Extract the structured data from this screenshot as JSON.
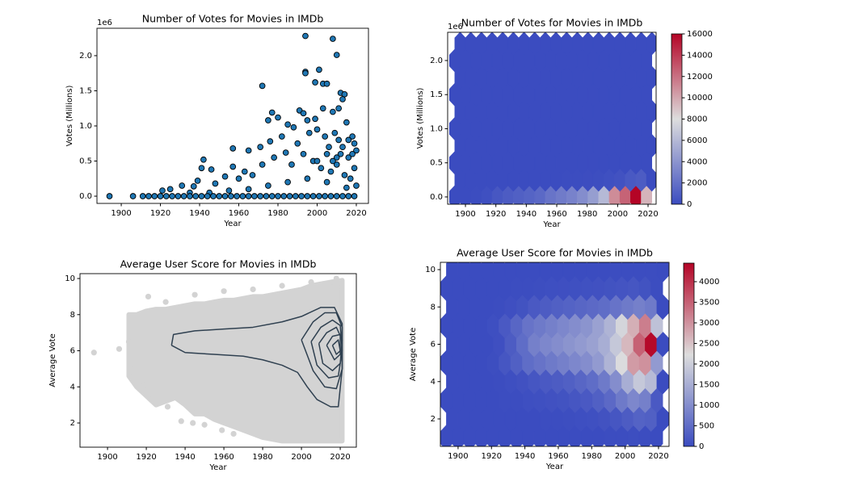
{
  "chart_data": [
    {
      "type": "scatter",
      "title": "Number of Votes for Movies in IMDb",
      "xlabel": "Year",
      "ylabel": "Votes (Millions)",
      "offset_text": "1e6",
      "color": "#1f77b4",
      "edgecolor": "#000000",
      "x": [
        1994,
        2008,
        2010,
        1972,
        1994,
        1994,
        2001,
        1999,
        2003,
        2005,
        2012,
        2014,
        1977,
        1980,
        1975,
        1985,
        1991,
        1993,
        1995,
        1999,
        2003,
        2008,
        2011,
        2013,
        2015,
        2018,
        2019,
        1988,
        1982,
        1976,
        1971,
        1965,
        1957,
        1942,
        1941,
        1946,
        1957,
        1963,
        1967,
        1953,
        1960,
        1939,
        1937,
        1931,
        1925,
        1921,
        1948,
        1972,
        1978,
        1984,
        1990,
        1996,
        2000,
        2004,
        2006,
        2009,
        2012,
        2016,
        2020,
        1987,
        1993,
        1998,
        2002,
        2007,
        2010,
        2014,
        2017,
        2019,
        2020,
        2015,
        2005,
        1995,
        1985,
        1975,
        1965,
        1955,
        1945,
        1935,
        2000,
        2005,
        2010,
        2013,
        2016,
        2018,
        2011,
        2008,
        1894,
        1906,
        1911,
        1914,
        1917,
        1920,
        1923,
        1926,
        1929,
        1932,
        1935,
        1938,
        1941,
        1944,
        1947,
        1950,
        1953,
        1956,
        1959,
        1962,
        1965,
        1968,
        1971,
        1974,
        1977,
        1980,
        1983,
        1986,
        1989,
        1992,
        1995,
        1998,
        2001,
        2004,
        2007,
        2010,
        2013,
        2016,
        2019
      ],
      "values": [
        2.28,
        2.24,
        2.01,
        1.57,
        1.77,
        1.75,
        1.8,
        1.62,
        1.6,
        1.6,
        1.47,
        1.45,
        1.19,
        1.12,
        1.08,
        1.02,
        1.22,
        1.18,
        1.08,
        1.1,
        1.25,
        1.2,
        1.25,
        1.38,
        1.05,
        0.85,
        0.75,
        0.98,
        0.85,
        0.78,
        0.7,
        0.65,
        0.68,
        0.52,
        0.4,
        0.38,
        0.42,
        0.35,
        0.3,
        0.28,
        0.25,
        0.22,
        0.14,
        0.15,
        0.1,
        0.08,
        0.18,
        0.45,
        0.55,
        0.62,
        0.75,
        0.9,
        0.95,
        0.85,
        0.7,
        0.9,
        0.6,
        0.55,
        0.65,
        0.45,
        0.6,
        0.5,
        0.4,
        0.35,
        0.45,
        0.3,
        0.25,
        0.4,
        0.15,
        0.12,
        0.2,
        0.25,
        0.2,
        0.15,
        0.1,
        0.08,
        0.05,
        0.05,
        0.5,
        0.6,
        0.55,
        0.7,
        0.8,
        0.6,
        0.8,
        0.5,
        0,
        0,
        0,
        0,
        0,
        0,
        0,
        0,
        0,
        0,
        0,
        0,
        0,
        0,
        0,
        0,
        0,
        0,
        0,
        0,
        0,
        0,
        0,
        0,
        0,
        0,
        0,
        0,
        0,
        0,
        0,
        0,
        0,
        0,
        0,
        0,
        0,
        0,
        0
      ],
      "xlim": [
        1887.6,
        2026.2
      ],
      "xticks": [
        1900,
        1920,
        1940,
        1960,
        1980,
        2000,
        2020
      ],
      "ylim": [
        -0.103,
        2.39
      ],
      "yticks": [
        {
          "value": 0,
          "label": "0.0"
        },
        0.5,
        {
          "value": 1,
          "label": "1.0"
        },
        1.5,
        {
          "value": 2,
          "label": "2.0"
        }
      ]
    },
    {
      "type": "hexbin",
      "title": "Number of Votes for Movies in IMDb",
      "xlabel": "Year",
      "ylabel": "Votes (Millions)",
      "offset_text": "1e6",
      "x": [
        1893,
        1900,
        1907,
        1914,
        1921,
        1928,
        1935,
        1942,
        1949,
        1956,
        1963,
        1970,
        1977,
        1984,
        1991,
        1998,
        2005,
        2012,
        2019
      ],
      "y": [
        0,
        0.25,
        0.5,
        0.75,
        1,
        1.25,
        1.5,
        1.75,
        2,
        2.25
      ],
      "values": [
        [
          0,
          10,
          40,
          200,
          600,
          900,
          1100,
          1300,
          1600,
          2200,
          2600,
          3000,
          3600,
          4500,
          6000,
          11000,
          12500,
          16000,
          9500
        ],
        [
          0,
          0,
          0,
          0,
          0,
          0,
          0,
          0,
          10,
          20,
          30,
          50,
          80,
          120,
          200,
          350,
          700,
          900,
          0
        ],
        [
          0,
          0,
          0,
          0,
          0,
          0,
          0,
          0,
          0,
          0,
          0,
          0,
          0,
          0,
          0,
          0,
          0,
          0,
          0
        ],
        [
          0,
          0,
          0,
          0,
          0,
          0,
          0,
          0,
          0,
          0,
          0,
          0,
          0,
          0,
          0,
          0,
          0,
          0,
          0
        ],
        [
          0,
          0,
          0,
          0,
          0,
          0,
          0,
          0,
          0,
          0,
          0,
          0,
          0,
          0,
          0,
          0,
          0,
          0,
          0
        ],
        [
          0,
          0,
          0,
          0,
          0,
          0,
          0,
          0,
          0,
          0,
          0,
          0,
          0,
          0,
          0,
          0,
          0,
          0,
          0
        ],
        [
          0,
          0,
          0,
          0,
          0,
          0,
          0,
          0,
          0,
          0,
          0,
          0,
          0,
          0,
          0,
          0,
          0,
          0,
          0
        ],
        [
          0,
          0,
          0,
          0,
          0,
          0,
          0,
          0,
          0,
          0,
          0,
          0,
          0,
          0,
          0,
          0,
          0,
          0,
          0
        ],
        [
          0,
          0,
          0,
          0,
          0,
          0,
          0,
          0,
          0,
          0,
          0,
          0,
          0,
          0,
          0,
          0,
          0,
          0,
          0
        ],
        [
          0,
          0,
          0,
          0,
          0,
          0,
          0,
          0,
          0,
          0,
          0,
          0,
          0,
          0,
          0,
          0,
          0,
          0,
          0
        ]
      ],
      "colormap": [
        "#3b4cc0",
        "#dddddd",
        "#b40426"
      ],
      "clim": [
        0,
        16000
      ],
      "cticks": [
        0,
        2000,
        4000,
        6000,
        8000,
        10000,
        12000,
        14000,
        16000
      ],
      "xlim": [
        1888.3,
        2025.3
      ],
      "xticks": [
        1900,
        1920,
        1940,
        1960,
        1980,
        2000,
        2020
      ],
      "ylim": [
        -0.107,
        2.414
      ],
      "yticks": [
        {
          "value": 0,
          "label": "0.0"
        },
        0.5,
        {
          "value": 1,
          "label": "1.0"
        },
        1.5,
        {
          "value": 2,
          "label": "2.0"
        }
      ]
    },
    {
      "type": "scatter",
      "title": "Average User Score for Movies in IMDb",
      "xlabel": "Year",
      "ylabel": "Average Vote",
      "color": "#d3d3d3",
      "edgecolor": null,
      "envelope": {
        "x": [
          1911,
          1915,
          1920,
          1925,
          1930,
          1935,
          1940,
          1945,
          1950,
          1955,
          1960,
          1965,
          1970,
          1975,
          1980,
          1985,
          1990,
          1995,
          2000,
          2005,
          2010,
          2015,
          2021
        ],
        "high": [
          8.0,
          8.0,
          8.2,
          8.3,
          8.3,
          8.4,
          8.5,
          8.6,
          8.6,
          8.7,
          8.8,
          8.8,
          8.9,
          9.0,
          9.0,
          9.1,
          9.2,
          9.3,
          9.4,
          9.6,
          9.7,
          9.8,
          9.9
        ],
        "low": [
          4.6,
          4.0,
          3.5,
          3.0,
          3.2,
          3.4,
          3.0,
          2.5,
          2.5,
          2.2,
          2.0,
          1.8,
          1.6,
          1.4,
          1.2,
          1.1,
          1.0,
          1.0,
          1.0,
          1.0,
          1.0,
          1.0,
          1.0
        ]
      },
      "x": [
        1893,
        1906,
        1911,
        1912,
        1919,
        1925,
        1931,
        1938,
        1944,
        1950,
        1959,
        1965,
        1921,
        1930,
        1945,
        1960,
        1975,
        1990,
        2005,
        2018
      ],
      "values": [
        5.9,
        6.1,
        6.5,
        5.0,
        4.1,
        3.2,
        2.9,
        2.1,
        2.0,
        1.9,
        1.6,
        1.4,
        9.0,
        8.7,
        9.1,
        9.3,
        9.4,
        9.6,
        9.8,
        10.0
      ],
      "contour_color": "#2f4050",
      "contours": [
        {
          "x": [
            1933,
            1934,
            1945,
            1960,
            1975,
            1990,
            2000,
            2010,
            2017,
            2021,
            2021,
            2019,
            2015,
            2008,
            2003,
            1998,
            1990,
            1980,
            1970,
            1955,
            1940,
            1933
          ],
          "y": [
            6.3,
            6.9,
            7.1,
            7.2,
            7.3,
            7.6,
            7.9,
            8.4,
            8.4,
            7.5,
            5.0,
            2.9,
            2.9,
            3.3,
            4.0,
            4.8,
            5.2,
            5.5,
            5.7,
            5.8,
            5.9,
            6.3
          ]
        },
        {
          "x": [
            2000,
            2006,
            2012,
            2018,
            2021,
            2021,
            2018,
            2012,
            2006,
            2000
          ],
          "y": [
            6.6,
            7.6,
            8.1,
            8.1,
            7.3,
            5.0,
            3.9,
            4.0,
            4.9,
            6.6
          ]
        },
        {
          "x": [
            2005,
            2010,
            2016,
            2020,
            2021,
            2019,
            2014,
            2008,
            2005
          ],
          "y": [
            6.5,
            7.3,
            7.7,
            7.4,
            6.0,
            4.6,
            4.5,
            5.2,
            6.5
          ]
        },
        {
          "x": [
            2009,
            2013,
            2018,
            2021,
            2020,
            2016,
            2011,
            2009
          ],
          "y": [
            6.4,
            7.0,
            7.3,
            6.6,
            5.3,
            4.9,
            5.3,
            6.4
          ]
        },
        {
          "x": [
            2013,
            2016,
            2020,
            2020,
            2017,
            2013
          ],
          "y": [
            6.3,
            6.8,
            6.9,
            5.8,
            5.5,
            6.3
          ]
        },
        {
          "x": [
            2016,
            2019,
            2020,
            2018,
            2016
          ],
          "y": [
            6.3,
            6.6,
            6.0,
            5.8,
            6.3
          ]
        }
      ],
      "xlim": [
        1885.8,
        2028.3
      ],
      "xticks": [
        1900,
        1920,
        1940,
        1960,
        1980,
        2000,
        2020
      ],
      "ylim": [
        0.66,
        10.27
      ],
      "yticks": [
        2,
        4,
        6,
        8,
        10
      ]
    },
    {
      "type": "hexbin",
      "title": "Average User Score for Movies in IMDb",
      "xlabel": "Year",
      "ylabel": "Average Vote",
      "x": [
        1893,
        1900,
        1907,
        1914,
        1921,
        1928,
        1935,
        1942,
        1949,
        1956,
        1963,
        1970,
        1977,
        1984,
        1991,
        1998,
        2005,
        2012,
        2019
      ],
      "y": [
        1,
        2,
        3,
        4,
        5,
        6,
        7,
        8,
        9,
        10
      ],
      "values": [
        [
          0,
          0,
          0,
          0,
          0,
          0,
          0,
          0,
          0,
          0,
          0,
          0,
          0,
          5,
          10,
          20,
          30,
          20,
          5
        ],
        [
          0,
          0,
          0,
          0,
          0,
          0,
          0,
          5,
          10,
          20,
          30,
          40,
          60,
          90,
          150,
          250,
          350,
          300,
          0
        ],
        [
          0,
          0,
          0,
          0,
          0,
          10,
          20,
          40,
          60,
          80,
          100,
          150,
          200,
          300,
          450,
          700,
          900,
          800,
          200
        ],
        [
          0,
          0,
          0,
          0,
          10,
          40,
          80,
          150,
          200,
          250,
          300,
          400,
          500,
          700,
          1000,
          1500,
          1900,
          1700,
          0
        ],
        [
          0,
          0,
          0,
          0,
          30,
          150,
          300,
          500,
          600,
          700,
          800,
          900,
          1000,
          1200,
          1600,
          2200,
          2900,
          3000,
          1200
        ],
        [
          0,
          5,
          0,
          0,
          50,
          250,
          500,
          800,
          900,
          1000,
          1100,
          1200,
          1300,
          1500,
          1900,
          2600,
          3500,
          4400,
          0
        ],
        [
          0,
          0,
          0,
          0,
          40,
          200,
          400,
          600,
          700,
          800,
          900,
          1000,
          1100,
          1300,
          1600,
          2100,
          2700,
          3200,
          1800
        ],
        [
          0,
          0,
          0,
          0,
          10,
          50,
          100,
          200,
          250,
          300,
          350,
          400,
          450,
          500,
          600,
          700,
          800,
          700,
          0
        ],
        [
          0,
          0,
          0,
          0,
          0,
          5,
          10,
          20,
          30,
          40,
          50,
          60,
          70,
          80,
          100,
          120,
          150,
          100,
          20
        ],
        [
          0,
          0,
          0,
          0,
          0,
          0,
          0,
          0,
          0,
          0,
          0,
          0,
          0,
          5,
          10,
          15,
          20,
          15,
          0
        ]
      ],
      "colormap": [
        "#3b4cc0",
        "#dddddd",
        "#b40426"
      ],
      "clim": [
        0,
        4450
      ],
      "cticks": [
        0,
        500,
        1000,
        1500,
        2000,
        2500,
        3000,
        3500,
        4000
      ],
      "xlim": [
        1889.4,
        2026.3
      ],
      "xticks": [
        1900,
        1920,
        1940,
        1960,
        1980,
        2000,
        2020
      ],
      "ylim": [
        0.53,
        10.39
      ],
      "yticks": [
        2,
        4,
        6,
        8,
        10
      ]
    }
  ]
}
